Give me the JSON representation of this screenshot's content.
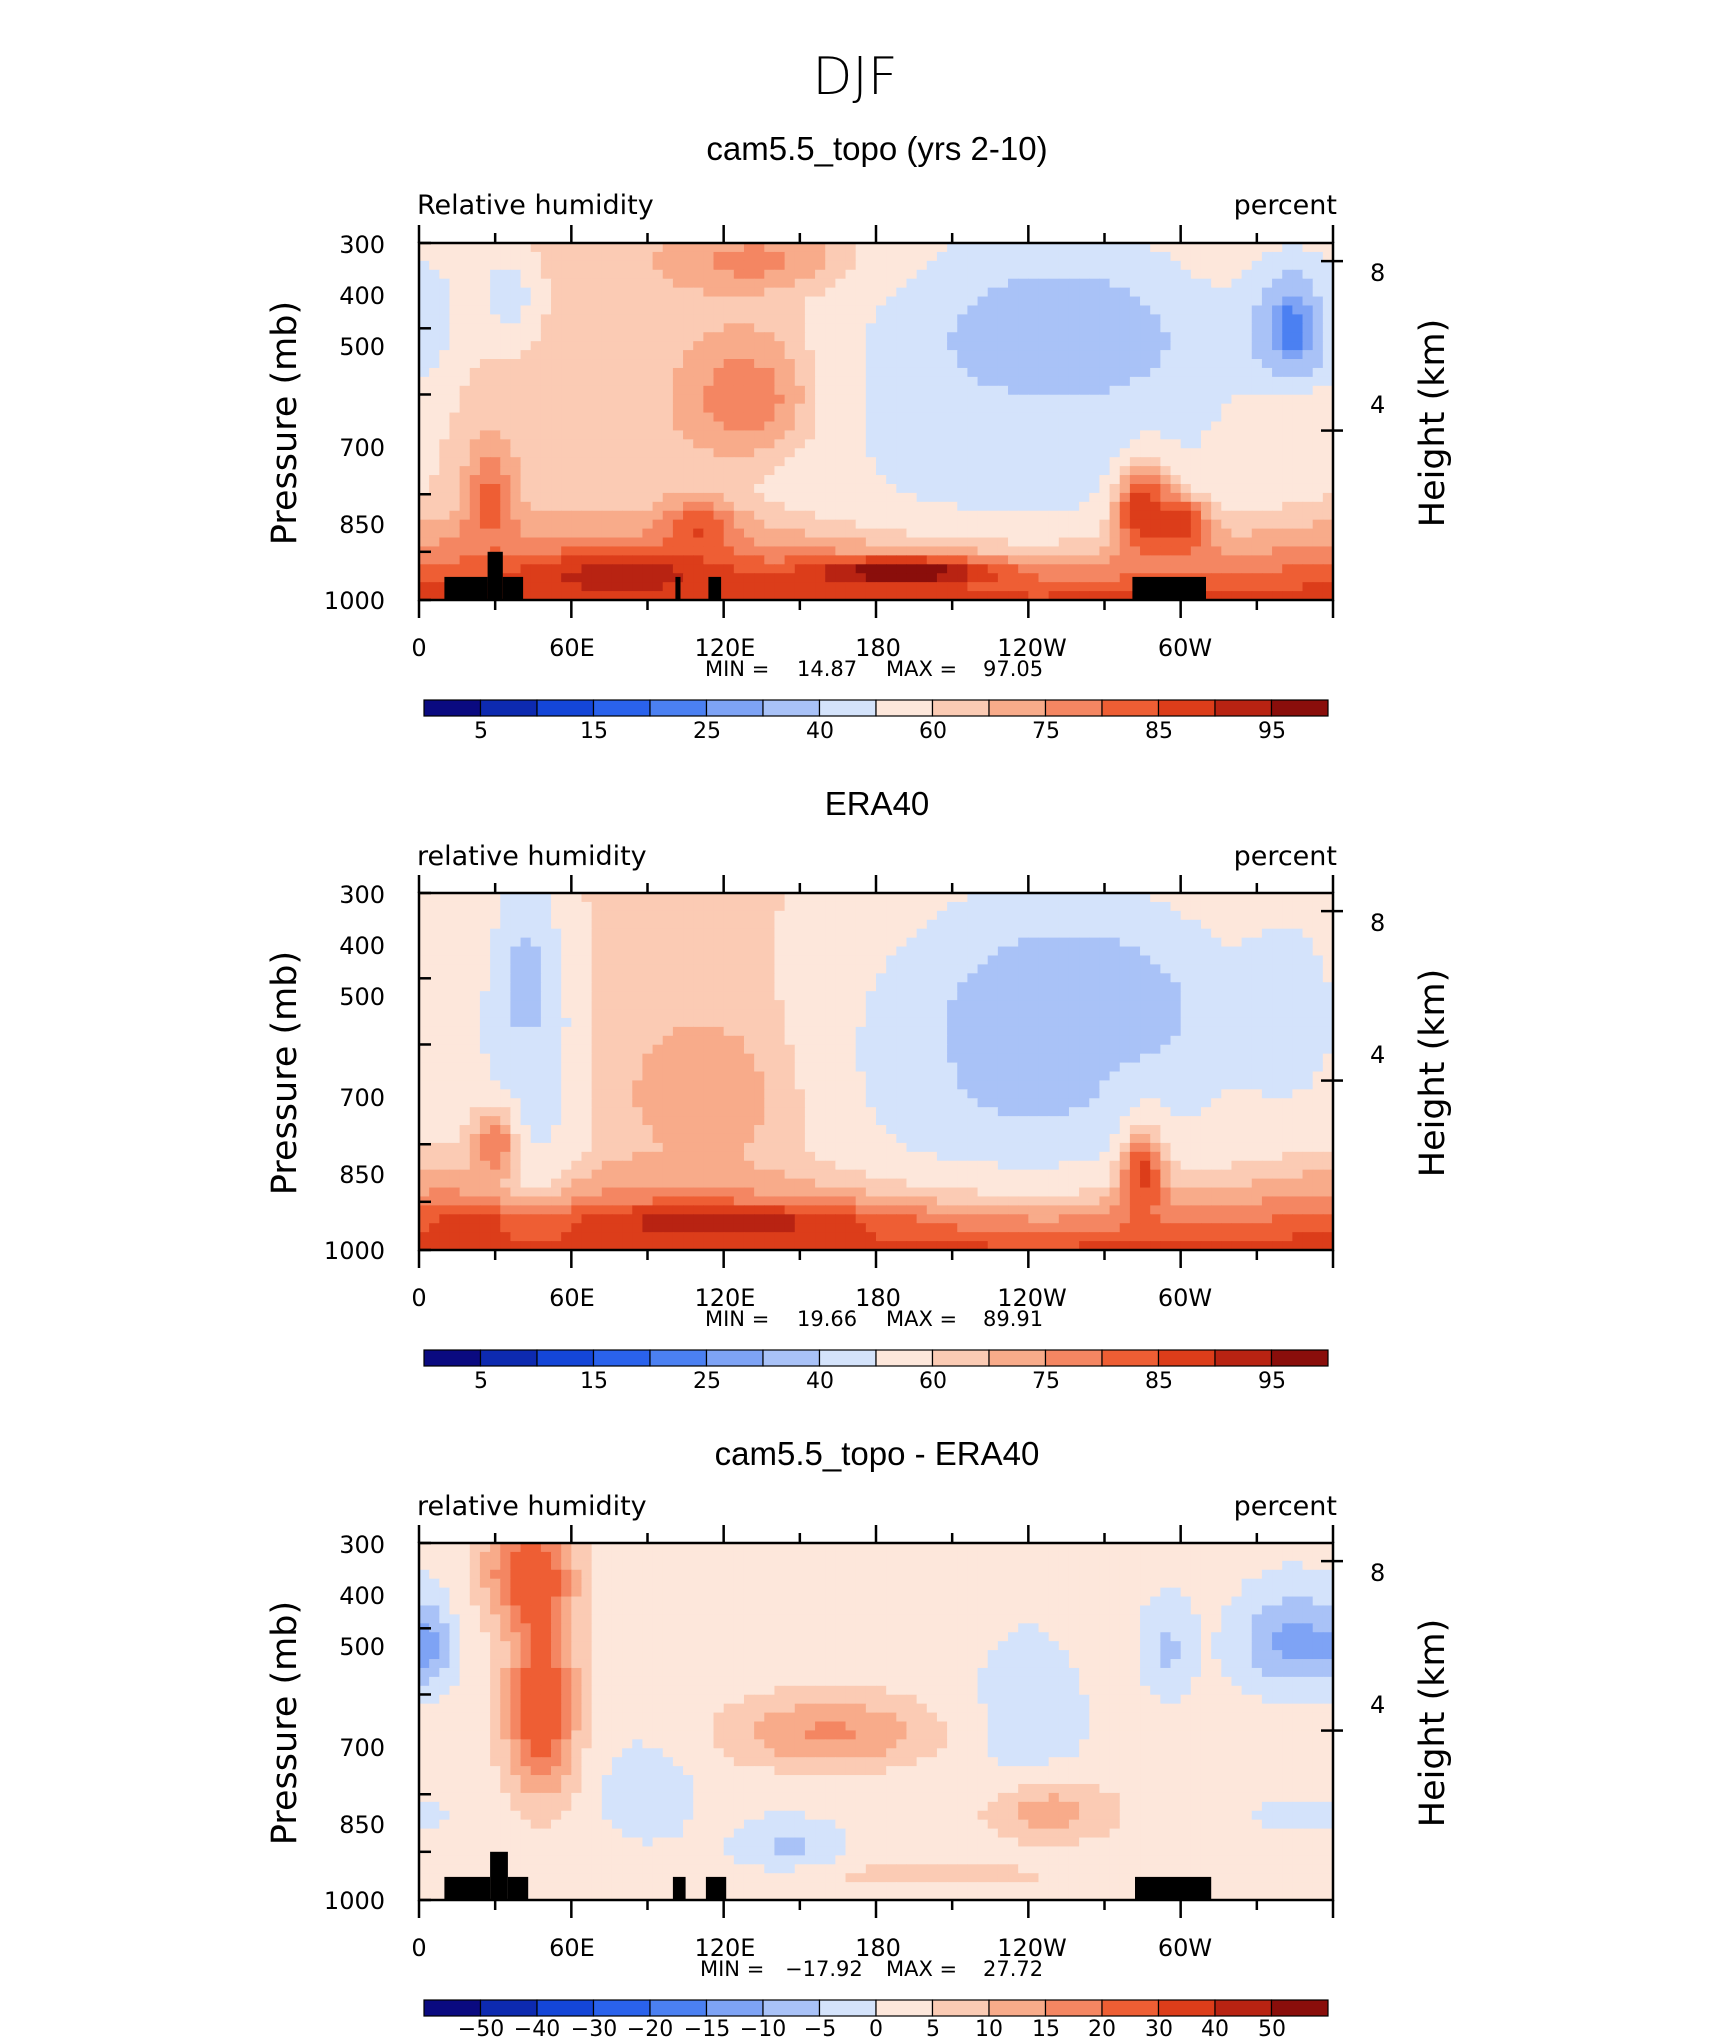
{
  "figure_title": "DJF",
  "chart_data": [
    {
      "type": "heatmap",
      "title": "cam5.5_topo (yrs 2-10)",
      "left_label": "Relative humidity",
      "right_label": "percent",
      "ylabel": "Pressure (mb)",
      "ylabel_right": "Height (km)",
      "yticks": [
        "300",
        "400",
        "500",
        "700",
        "850",
        "1000"
      ],
      "yticks_right": [
        "8",
        "4"
      ],
      "xticks": [
        "0",
        "60E",
        "120E",
        "180",
        "120W",
        "60W"
      ],
      "stats": {
        "min_label": "MIN =",
        "min": "14.87",
        "max_label": "MAX =",
        "max": "97.05"
      },
      "colorbar_labels": [
        "5",
        "15",
        "25",
        "40",
        "60",
        "75",
        "85",
        "95"
      ],
      "colorbar_levels": [
        5,
        10,
        15,
        20,
        25,
        30,
        40,
        50,
        60,
        65,
        70,
        75,
        80,
        85,
        90,
        95
      ],
      "xlim_deg": [
        0,
        360
      ],
      "ylim_mb": [
        1000,
        300
      ],
      "blobs": [
        {
          "lon": 35,
          "p": 360,
          "rx": 10,
          "ry": 50,
          "v": 42
        },
        {
          "lon": 138,
          "p": 320,
          "rx": 40,
          "ry": 35,
          "v": 75
        },
        {
          "lon": 135,
          "p": 510,
          "rx": 30,
          "ry": 110,
          "v": 82
        },
        {
          "lon": 252,
          "p": 420,
          "rx": 55,
          "ry": 110,
          "v": 22
        },
        {
          "lon": 240,
          "p": 560,
          "rx": 85,
          "ry": 260,
          "v": 40
        },
        {
          "lon": 345,
          "p": 400,
          "rx": 18,
          "ry": 80,
          "v": 20
        },
        {
          "lon": 5,
          "p": 380,
          "rx": 12,
          "ry": 70,
          "v": 45
        },
        {
          "lon": 28,
          "p": 720,
          "rx": 10,
          "ry": 130,
          "v": 78
        },
        {
          "lon": 110,
          "p": 800,
          "rx": 15,
          "ry": 90,
          "v": 80
        },
        {
          "lon": 285,
          "p": 740,
          "rx": 12,
          "ry": 120,
          "v": 85
        },
        {
          "lon": 300,
          "p": 780,
          "rx": 12,
          "ry": 80,
          "v": 84
        },
        {
          "lon": 190,
          "p": 910,
          "rx": 35,
          "ry": 40,
          "v": 97
        },
        {
          "lon": 80,
          "p": 920,
          "rx": 40,
          "ry": 60,
          "v": 88
        }
      ],
      "topo": [
        [
          10,
          27,
          925
        ],
        [
          27,
          33,
          850
        ],
        [
          33,
          41,
          925
        ],
        [
          101,
          103,
          925
        ],
        [
          114,
          119,
          925
        ],
        [
          281,
          310,
          925
        ]
      ]
    },
    {
      "type": "heatmap",
      "title": "ERA40",
      "left_label": "relative humidity",
      "right_label": "percent",
      "ylabel": "Pressure (mb)",
      "ylabel_right": "Height (km)",
      "yticks": [
        "300",
        "400",
        "500",
        "700",
        "850",
        "1000"
      ],
      "yticks_right": [
        "8",
        "4"
      ],
      "xticks": [
        "0",
        "60E",
        "120E",
        "180",
        "120W",
        "60W"
      ],
      "stats": {
        "min_label": "MIN =",
        "min": "19.66",
        "max_label": "MAX =",
        "max": "89.91"
      },
      "colorbar_labels": [
        "5",
        "15",
        "25",
        "40",
        "60",
        "75",
        "85",
        "95"
      ],
      "colorbar_levels": [
        5,
        10,
        15,
        20,
        25,
        30,
        40,
        50,
        60,
        65,
        70,
        75,
        80,
        85,
        90,
        95
      ],
      "xlim_deg": [
        0,
        360
      ],
      "ylim_mb": [
        1000,
        300
      ],
      "blobs": [
        {
          "lon": 42,
          "p": 440,
          "rx": 12,
          "ry": 130,
          "v": 22
        },
        {
          "lon": 42,
          "p": 560,
          "rx": 20,
          "ry": 250,
          "v": 42
        },
        {
          "lon": 125,
          "p": 590,
          "rx": 40,
          "ry": 160,
          "v": 72
        },
        {
          "lon": 258,
          "p": 440,
          "rx": 55,
          "ry": 120,
          "v": 24
        },
        {
          "lon": 240,
          "p": 560,
          "rx": 80,
          "ry": 260,
          "v": 38
        },
        {
          "lon": 342,
          "p": 460,
          "rx": 20,
          "ry": 140,
          "v": 40
        },
        {
          "lon": 30,
          "p": 700,
          "rx": 10,
          "ry": 100,
          "v": 75
        },
        {
          "lon": 285,
          "p": 780,
          "rx": 10,
          "ry": 130,
          "v": 82
        },
        {
          "lon": 120,
          "p": 910,
          "rx": 60,
          "ry": 50,
          "v": 88
        },
        {
          "lon": 20,
          "p": 920,
          "rx": 15,
          "ry": 60,
          "v": 85
        }
      ],
      "topo": []
    },
    {
      "type": "heatmap",
      "title": "cam5.5_topo - ERA40",
      "left_label": "relative humidity",
      "right_label": "percent",
      "ylabel": "Pressure (mb)",
      "ylabel_right": "Height (km)",
      "yticks": [
        "300",
        "400",
        "500",
        "700",
        "850",
        "1000"
      ],
      "yticks_right": [
        "8",
        "4"
      ],
      "xticks": [
        "0",
        "60E",
        "120E",
        "180",
        "120W",
        "60W"
      ],
      "stats": {
        "min_label": "MIN =",
        "min": "−17.92",
        "max_label": "MAX =",
        "max": "27.72"
      },
      "colorbar_labels": [
        "−50",
        "−40",
        "−30",
        "−20",
        "−15",
        "−10",
        "−5",
        "0",
        "5",
        "10",
        "15",
        "20",
        "30",
        "40",
        "50"
      ],
      "colorbar_levels": [
        -50,
        -40,
        -30,
        -20,
        -15,
        -10,
        -5,
        0,
        5,
        10,
        15,
        20,
        30,
        40,
        50
      ],
      "xlim_deg": [
        0,
        360
      ],
      "ylim_mb": [
        1000,
        300
      ],
      "blobs": [
        {
          "lon": 48,
          "p": 520,
          "rx": 14,
          "ry": 180,
          "v": 24
        },
        {
          "lon": 42,
          "p": 330,
          "rx": 18,
          "ry": 60,
          "v": 18
        },
        {
          "lon": 162,
          "p": 570,
          "rx": 40,
          "ry": 70,
          "v": 14
        },
        {
          "lon": 248,
          "p": 740,
          "rx": 25,
          "ry": 80,
          "v": 12
        },
        {
          "lon": 205,
          "p": 920,
          "rx": 40,
          "ry": 30,
          "v": 8
        },
        {
          "lon": 345,
          "p": 420,
          "rx": 22,
          "ry": 70,
          "v": -14
        },
        {
          "lon": 5,
          "p": 430,
          "rx": 8,
          "ry": 60,
          "v": -8
        },
        {
          "lon": 90,
          "p": 700,
          "rx": 20,
          "ry": 130,
          "v": -5
        },
        {
          "lon": 240,
          "p": 560,
          "rx": 25,
          "ry": 170,
          "v": -5
        },
        {
          "lon": 295,
          "p": 430,
          "rx": 10,
          "ry": 70,
          "v": -8
        },
        {
          "lon": 145,
          "p": 830,
          "rx": 20,
          "ry": 70,
          "v": -8
        },
        {
          "lon": 350,
          "p": 750,
          "rx": 20,
          "ry": 40,
          "v": -6
        }
      ],
      "topo": [
        [
          10,
          28,
          925
        ],
        [
          28,
          35,
          850
        ],
        [
          35,
          43,
          925
        ],
        [
          100,
          105,
          925
        ],
        [
          113,
          121,
          925
        ],
        [
          282,
          312,
          925
        ]
      ]
    }
  ],
  "colors": {
    "abs_palette": [
      "#0a0a80",
      "#0d2ab0",
      "#1446d8",
      "#2a62ec",
      "#4b80f2",
      "#7ea3f5",
      "#a9c2f7",
      "#d4e3fb",
      "#fde7db",
      "#fbcbb4",
      "#f8ab8a",
      "#f48662",
      "#ee5e34",
      "#dc3d1a",
      "#b82312",
      "#8a0e0b"
    ],
    "diff_palette": [
      "#0a0a80",
      "#0d2ab0",
      "#1446d8",
      "#2a62ec",
      "#4b80f2",
      "#7ea3f5",
      "#a9c2f7",
      "#d4e3fb",
      "#fde7db",
      "#fbcbb4",
      "#f8ab8a",
      "#f48662",
      "#ee5e34",
      "#dc3d1a",
      "#b82312",
      "#8a0e0b"
    ]
  }
}
